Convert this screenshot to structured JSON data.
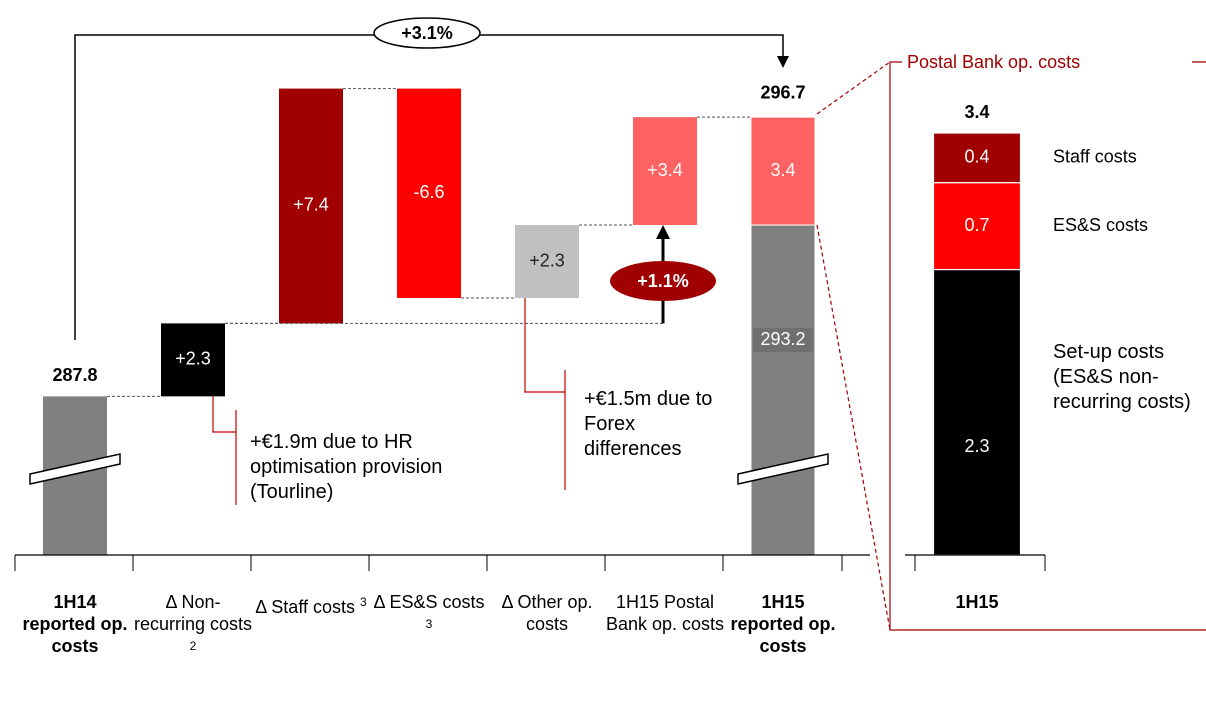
{
  "chart_data": [
    {
      "type": "waterfall",
      "categories": [
        "1H14 reported op. costs",
        "Δ Non-recurring costs",
        "Δ Staff costs",
        "Δ ES&S costs",
        "Δ Other op. costs",
        "1H15 Postal Bank op. costs",
        "1H15 reported op. costs"
      ],
      "category_notes": [
        null,
        "2",
        "3",
        "3",
        null,
        null,
        null
      ],
      "bar_kinds": [
        "total",
        "delta",
        "delta",
        "delta",
        "delta",
        "delta",
        "total"
      ],
      "values": [
        287.8,
        2.3,
        7.4,
        -6.6,
        2.3,
        3.4,
        296.7
      ],
      "value_labels": [
        "287.8",
        "+2.3",
        "+7.4",
        "-6.6",
        "+2.3",
        "+3.4",
        "296.7"
      ],
      "colors": [
        "#808080",
        "#000000",
        "#a00000",
        "#ff0000",
        "#c0c0c0",
        "#ff6262",
        "#808080"
      ],
      "final_split": {
        "values": [
          293.2,
          3.4
        ],
        "colors": [
          "#808080",
          "#ff6262"
        ]
      },
      "ylim": [
        282.8,
        299
      ],
      "annotations": [
        "+3.1%",
        "+1.1%",
        "+€1.9m due to HR optimisation provision (Tourline)",
        "+€1.5m due to Forex differences"
      ]
    },
    {
      "type": "stacked_bar",
      "title": "Postal Bank op. costs",
      "categories": [
        "1H15"
      ],
      "series": [
        {
          "name": "Set-up costs (ES&S non-recurring costs)",
          "color": "#000000",
          "values": [
            2.3
          ]
        },
        {
          "name": "ES&S costs",
          "color": "#ff0000",
          "values": [
            0.7
          ]
        },
        {
          "name": "Staff costs",
          "color": "#a00000",
          "values": [
            0.4
          ]
        }
      ],
      "totals": [
        3.4
      ],
      "ylim": [
        0,
        3.4
      ]
    }
  ]
}
